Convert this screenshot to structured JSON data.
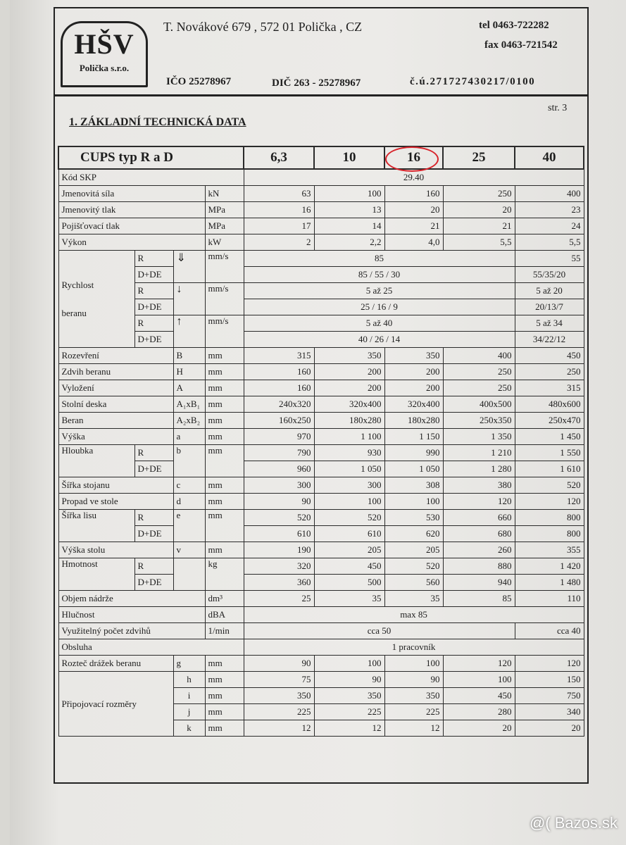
{
  "letterhead": {
    "logo": {
      "name": "HŠV",
      "subtitle": "Polička s.r.o."
    },
    "address": "T. Novákové 679 ,  572 01 Polička ,  CZ",
    "tel": "tel 0463-722282",
    "fax": "fax 0463-721542",
    "ico": "IČO 25278967",
    "dic": "DIČ 263 - 25278967",
    "account": "č.ú.271727430217/0100"
  },
  "page_number": "str. 3",
  "section_title": "1. ZÁKLADNÍ TECHNICKÁ DATA",
  "highlight_color": "#d8232a",
  "table": {
    "header": {
      "title": "CUPS typ R a D",
      "sizes": [
        "6,3",
        "10",
        "16",
        "25",
        "40"
      ],
      "highlighted": "16"
    },
    "kod_skp": {
      "label": "Kód SKP",
      "value": "29.40"
    },
    "simple": [
      {
        "label": "Jmenovitá síla",
        "unit": "kN",
        "values": [
          "63",
          "100",
          "160",
          "250",
          "400"
        ]
      },
      {
        "label": "Jmenovitý tlak",
        "unit": "MPa",
        "values": [
          "16",
          "13",
          "20",
          "20",
          "23"
        ]
      },
      {
        "label": "Pojišťovací tlak",
        "unit": "MPa",
        "values": [
          "17",
          "14",
          "21",
          "21",
          "24"
        ]
      },
      {
        "label": "Výkon",
        "unit": "kW",
        "values": [
          "2",
          "2,2",
          "4,0",
          "5,5",
          "5,5"
        ]
      }
    ],
    "rychlost": {
      "label1": "Rychlost",
      "label2": "beranu",
      "unit": "mm/s",
      "groups": [
        {
          "arrow": "⇓",
          "rows": [
            {
              "variant": "R",
              "value": "85",
              "value_40": "55"
            },
            {
              "variant": "D+DE",
              "value": "85 / 55 / 30",
              "value_40": "55/35/20"
            }
          ]
        },
        {
          "arrow": "↓",
          "rows": [
            {
              "variant": "R",
              "value": "5 až 25",
              "value_40": "5 až 20"
            },
            {
              "variant": "D+DE",
              "value": "25 / 16 / 9",
              "value_40": "20/13/7"
            }
          ]
        },
        {
          "arrow": "↑",
          "rows": [
            {
              "variant": "R",
              "value": "5 až 40",
              "value_40": "5 až 34"
            },
            {
              "variant": "D+DE",
              "value": "40 / 26 / 14",
              "value_40": "34/22/12"
            }
          ]
        }
      ]
    },
    "dims": [
      {
        "label": "Rozevření",
        "sym": "B",
        "unit": "mm",
        "values": [
          "315",
          "350",
          "350",
          "400",
          "450"
        ]
      },
      {
        "label": "Zdvih beranu",
        "sym": "H",
        "unit": "mm",
        "values": [
          "160",
          "200",
          "200",
          "250",
          "250"
        ]
      },
      {
        "label": "Vyložení",
        "sym": "A",
        "unit": "mm",
        "values": [
          "160",
          "200",
          "200",
          "250",
          "315"
        ]
      },
      {
        "label": "Stolní deska",
        "sym": "A₁xB₁",
        "unit": "mm",
        "values": [
          "240x320",
          "320x400",
          "320x400",
          "400x500",
          "480x600"
        ]
      },
      {
        "label": "Beran",
        "sym": "A₂xB₂",
        "unit": "mm",
        "values": [
          "160x250",
          "180x280",
          "180x280",
          "250x350",
          "250x470"
        ]
      },
      {
        "label": "Výška",
        "sym": "a",
        "unit": "mm",
        "values": [
          "970",
          "1 100",
          "1 150",
          "1 350",
          "1 450"
        ]
      }
    ],
    "hloubka": {
      "label": "Hloubka",
      "sym": "b",
      "unit": "mm",
      "rows": [
        {
          "variant": "R",
          "values": [
            "790",
            "930",
            "990",
            "1 210",
            "1 550"
          ]
        },
        {
          "variant": "D+DE",
          "values": [
            "960",
            "1 050",
            "1 050",
            "1 280",
            "1 610"
          ]
        }
      ]
    },
    "sirka_stojanu": {
      "label": "Šířka stojanu",
      "sym": "c",
      "unit": "mm",
      "values": [
        "300",
        "300",
        "308",
        "380",
        "520"
      ]
    },
    "propad": {
      "label": "Propad ve stole",
      "sym": "d",
      "unit": "mm",
      "values": [
        "90",
        "100",
        "100",
        "120",
        "120"
      ]
    },
    "sirka_lisu": {
      "label": "Šířka lisu",
      "sym": "e",
      "unit": "mm",
      "rows": [
        {
          "variant": "R",
          "values": [
            "520",
            "520",
            "530",
            "660",
            "800"
          ]
        },
        {
          "variant": "D+DE",
          "values": [
            "610",
            "610",
            "620",
            "680",
            "800"
          ]
        }
      ]
    },
    "vyska_stolu": {
      "label": "Výška stolu",
      "sym": "v",
      "unit": "mm",
      "values": [
        "190",
        "205",
        "205",
        "260",
        "355"
      ]
    },
    "hmotnost": {
      "label": "Hmotnost",
      "sym": "",
      "unit": "kg",
      "rows": [
        {
          "variant": "R",
          "values": [
            "320",
            "450",
            "520",
            "880",
            "1 420"
          ]
        },
        {
          "variant": "D+DE",
          "values": [
            "360",
            "500",
            "560",
            "940",
            "1 480"
          ]
        }
      ]
    },
    "objem": {
      "label": "Objem nádrže",
      "unit": "dm³",
      "values": [
        "25",
        "35",
        "35",
        "85",
        "110"
      ]
    },
    "hlucnost": {
      "label": "Hlučnost",
      "unit": "dBA",
      "value": "max 85"
    },
    "zdvihy": {
      "label": "Využitelný počet zdvihů",
      "unit": "1/min",
      "value": "cca 50",
      "value_40": "cca 40"
    },
    "obsluha": {
      "label": "Obsluha",
      "value": "1 pracovník"
    },
    "roztec": {
      "label": "Rozteč drážek beranu",
      "sym": "g",
      "unit": "mm",
      "values": [
        "90",
        "100",
        "100",
        "120",
        "120"
      ]
    },
    "pripojovaci": {
      "label": "Připojovací rozměry",
      "rows": [
        {
          "sym": "h",
          "unit": "mm",
          "values": [
            "75",
            "90",
            "90",
            "100",
            "150"
          ]
        },
        {
          "sym": "i",
          "unit": "mm",
          "values": [
            "350",
            "350",
            "350",
            "450",
            "750"
          ]
        },
        {
          "sym": "j",
          "unit": "mm",
          "values": [
            "225",
            "225",
            "225",
            "280",
            "340"
          ]
        },
        {
          "sym": "k",
          "unit": "mm",
          "values": [
            "12",
            "12",
            "12",
            "20",
            "20"
          ]
        }
      ]
    }
  },
  "watermark": "@( Bazos.sk"
}
